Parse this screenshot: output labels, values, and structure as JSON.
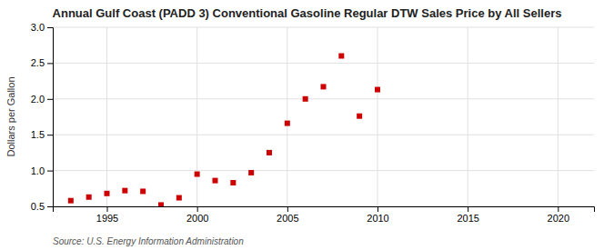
{
  "chart_data": {
    "type": "scatter",
    "title": "Annual Gulf Coast (PADD 3) Conventional Gasoline Regular DTW Sales Price by All Sellers",
    "ylabel": "Dollars per Gallon",
    "annotations": [
      "Source: U.S. Energy Information Administration"
    ],
    "x": [
      1993,
      1994,
      1995,
      1996,
      1997,
      1998,
      1999,
      2000,
      2001,
      2002,
      2003,
      2004,
      2005,
      2006,
      2007,
      2008,
      2009,
      2010
    ],
    "values": [
      0.58,
      0.63,
      0.68,
      0.72,
      0.71,
      0.52,
      0.62,
      0.95,
      0.86,
      0.83,
      0.97,
      1.25,
      1.66,
      2.0,
      2.17,
      2.6,
      1.76,
      2.13
    ],
    "color": "#cc0000",
    "marker": "square",
    "xlim": [
      1992,
      2022
    ],
    "xticks": [
      1995,
      2000,
      2005,
      2010,
      2015,
      2020
    ],
    "ylim": [
      0.5,
      3.0
    ],
    "yticks": [
      0.5,
      {
        "value": 1.0,
        "label": "1.0"
      },
      1.5,
      {
        "value": 2.0,
        "label": "2.0"
      },
      2.5,
      {
        "value": 3.0,
        "label": "3.0"
      }
    ],
    "grid": true
  }
}
